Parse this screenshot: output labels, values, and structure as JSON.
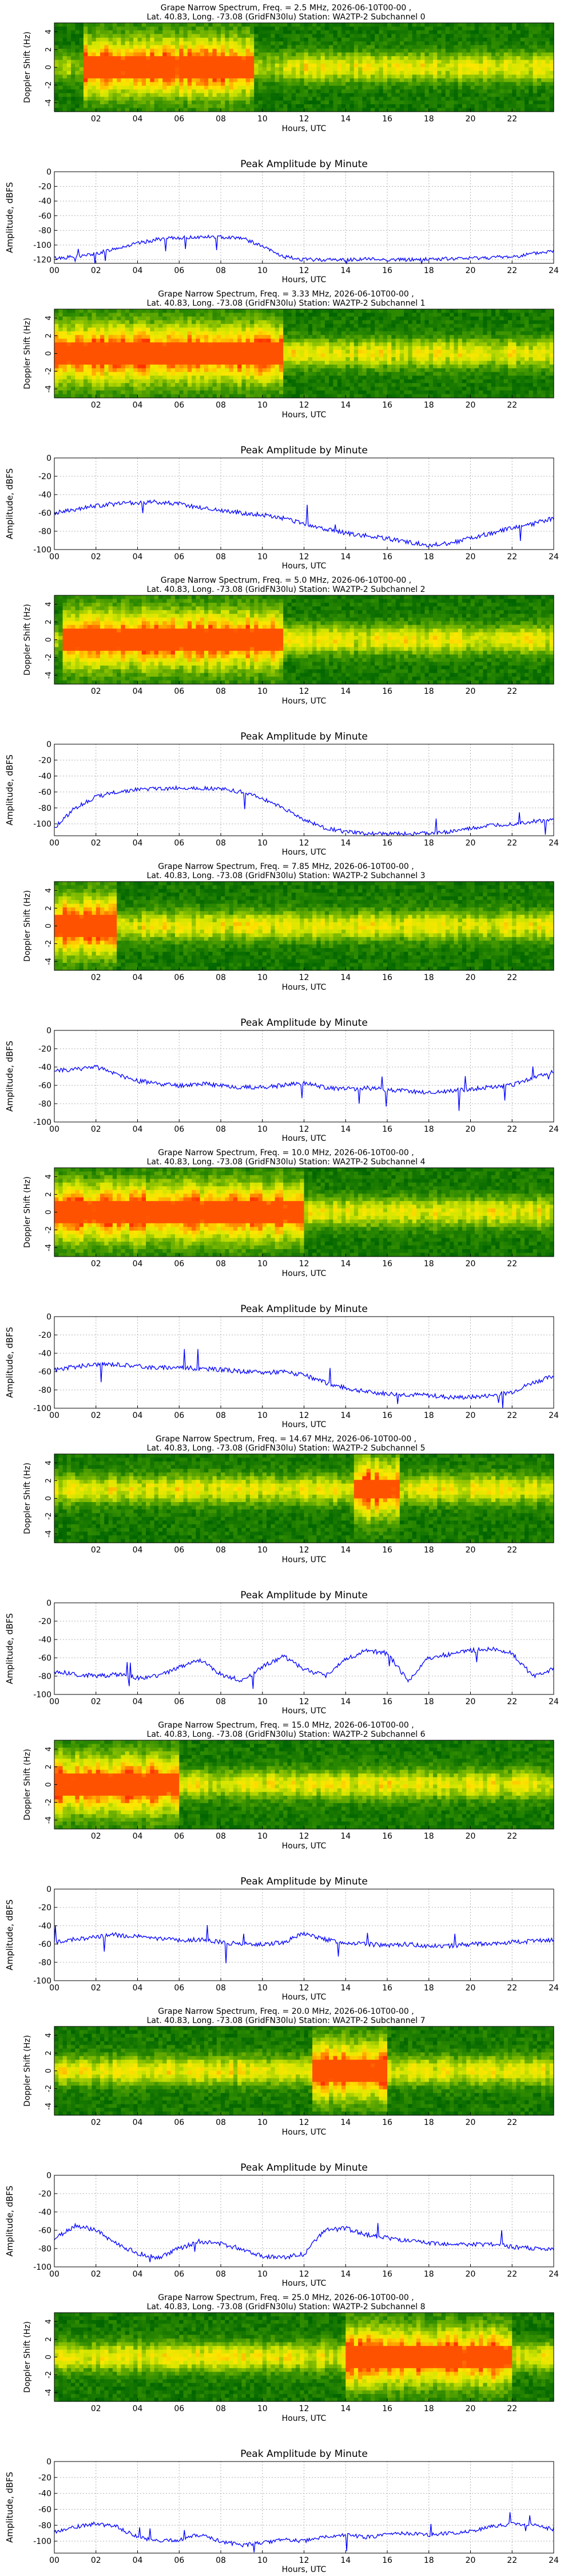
{
  "chart_data": [
    {
      "type": "heatmap",
      "title_line1": "Grape Narrow Spectrum, Freq. = 2.5 MHz, 2026-06-10T00-00 ,",
      "title_line2": "Lat. 40.83, Long. -73.08 (GridFN30lu) Station: WA2TP-2 Subchannel 0",
      "xlabel": "Hours, UTC",
      "ylabel": "Doppler Shift (Hz)",
      "xticks": [
        "02",
        "04",
        "06",
        "08",
        "10",
        "12",
        "14",
        "16",
        "18",
        "20",
        "22"
      ],
      "yticks": [
        "4",
        "2",
        "0",
        "-2",
        "-4"
      ],
      "xlim": [
        0,
        24
      ],
      "ylim": [
        -5,
        5
      ],
      "colormap": [
        "#006400",
        "#2e8b00",
        "#7ab800",
        "#d4e600",
        "#ffe600",
        "#ff9900",
        "#ff3300"
      ],
      "strong_band": [
        1.5,
        9.5
      ],
      "weak_band": [
        11,
        24
      ],
      "band_center": 0
    },
    {
      "type": "line",
      "title": "Peak Amplitude by Minute",
      "xlabel": "Hours, UTC",
      "ylabel": "Amplitude, dBFS",
      "xticks": [
        "00",
        "02",
        "04",
        "06",
        "08",
        "10",
        "12",
        "14",
        "16",
        "18",
        "20",
        "22",
        "24"
      ],
      "yticks": [
        "0",
        "-20",
        "-40",
        "-60",
        "-80",
        "-100",
        "-120"
      ],
      "xlim": [
        0,
        24
      ],
      "ylim": [
        -125,
        0
      ],
      "grid": true,
      "color": "#0000ff",
      "x": [
        0,
        1,
        2,
        3,
        4,
        5,
        6,
        7,
        8,
        9,
        10,
        11,
        12,
        13,
        14,
        15,
        16,
        17,
        18,
        19,
        20,
        21,
        22,
        23,
        24
      ],
      "values": [
        -118,
        -116,
        -112,
        -104,
        -98,
        -92,
        -90,
        -89,
        -89,
        -90,
        -102,
        -116,
        -120,
        -120,
        -120,
        -119,
        -120,
        -120,
        -119,
        -119,
        -118,
        -117,
        -116,
        -112,
        -108
      ]
    },
    {
      "type": "heatmap",
      "title_line1": "Grape Narrow Spectrum, Freq. = 3.33 MHz, 2026-06-10T00-00 ,",
      "title_line2": "Lat. 40.83, Long. -73.08 (GridFN30lu) Station: WA2TP-2 Subchannel 1",
      "xlabel": "Hours, UTC",
      "ylabel": "Doppler Shift (Hz)",
      "xticks": [
        "02",
        "04",
        "06",
        "08",
        "10",
        "12",
        "14",
        "16",
        "18",
        "20",
        "22"
      ],
      "yticks": [
        "4",
        "2",
        "0",
        "-2",
        "-4"
      ],
      "xlim": [
        0,
        24
      ],
      "ylim": [
        -5,
        5
      ],
      "colormap": [
        "#006400",
        "#2e8b00",
        "#7ab800",
        "#d4e600",
        "#ffe600",
        "#ff9900",
        "#ff3300"
      ],
      "strong_band": [
        0,
        11
      ],
      "weak_band": [
        11,
        24
      ],
      "band_center": 0
    },
    {
      "type": "line",
      "title": "Peak Amplitude by Minute",
      "xlabel": "Hours, UTC",
      "ylabel": "Amplitude, dBFS",
      "xticks": [
        "00",
        "02",
        "04",
        "06",
        "08",
        "10",
        "12",
        "14",
        "16",
        "18",
        "20",
        "22",
        "24"
      ],
      "yticks": [
        "0",
        "-20",
        "-40",
        "-60",
        "-80",
        "-100"
      ],
      "xlim": [
        0,
        24
      ],
      "ylim": [
        -100,
        0
      ],
      "grid": true,
      "color": "#0000ff",
      "x": [
        0,
        1,
        2,
        3,
        4,
        5,
        6,
        7,
        8,
        9,
        10,
        11,
        12,
        13,
        14,
        15,
        16,
        17,
        18,
        19,
        20,
        21,
        22,
        23,
        24
      ],
      "values": [
        -60,
        -57,
        -52,
        -50,
        -49,
        -48,
        -50,
        -54,
        -57,
        -60,
        -62,
        -66,
        -72,
        -78,
        -82,
        -85,
        -88,
        -92,
        -95,
        -93,
        -88,
        -82,
        -77,
        -72,
        -66
      ]
    },
    {
      "type": "heatmap",
      "title_line1": "Grape Narrow Spectrum, Freq. = 5.0 MHz, 2026-06-10T00-00 ,",
      "title_line2": "Lat. 40.83, Long. -73.08 (GridFN30lu) Station: WA2TP-2 Subchannel 2",
      "xlabel": "Hours, UTC",
      "ylabel": "Doppler Shift (Hz)",
      "xticks": [
        "02",
        "04",
        "06",
        "08",
        "10",
        "12",
        "14",
        "16",
        "18",
        "20",
        "22"
      ],
      "yticks": [
        "4",
        "2",
        "0",
        "-2",
        "-4"
      ],
      "xlim": [
        0,
        24
      ],
      "ylim": [
        -5,
        5
      ],
      "colormap": [
        "#006400",
        "#2e8b00",
        "#7ab800",
        "#d4e600",
        "#ffe600",
        "#ff9900",
        "#ff3300"
      ],
      "strong_band": [
        0.5,
        11
      ],
      "weak_band": [
        11,
        24
      ],
      "band_center": 0
    },
    {
      "type": "line",
      "title": "Peak Amplitude by Minute",
      "xlabel": "Hours, UTC",
      "ylabel": "Amplitude, dBFS",
      "xticks": [
        "00",
        "02",
        "04",
        "06",
        "08",
        "10",
        "12",
        "14",
        "16",
        "18",
        "20",
        "22",
        "24"
      ],
      "yticks": [
        "0",
        "-20",
        "-40",
        "-60",
        "-80",
        "-100"
      ],
      "xlim": [
        0,
        24
      ],
      "ylim": [
        -115,
        0
      ],
      "grid": true,
      "color": "#0000ff",
      "x": [
        0,
        1,
        2,
        3,
        4,
        5,
        6,
        7,
        8,
        9,
        10,
        11,
        12,
        13,
        14,
        15,
        16,
        17,
        18,
        19,
        20,
        21,
        22,
        23,
        24
      ],
      "values": [
        -105,
        -80,
        -66,
        -60,
        -57,
        -56,
        -55,
        -55,
        -56,
        -60,
        -68,
        -80,
        -95,
        -105,
        -110,
        -112,
        -113,
        -112,
        -112,
        -110,
        -106,
        -102,
        -100,
        -97,
        -95
      ]
    },
    {
      "type": "heatmap",
      "title_line1": "Grape Narrow Spectrum, Freq. = 7.85 MHz, 2026-06-10T00-00 ,",
      "title_line2": "Lat. 40.83, Long. -73.08 (GridFN30lu) Station: WA2TP-2 Subchannel 3",
      "xlabel": "Hours, UTC",
      "ylabel": "Doppler Shift (Hz)",
      "xticks": [
        "02",
        "04",
        "06",
        "08",
        "10",
        "12",
        "14",
        "16",
        "18",
        "20",
        "22"
      ],
      "yticks": [
        "4",
        "2",
        "0",
        "-2",
        "-4"
      ],
      "xlim": [
        0,
        24
      ],
      "ylim": [
        -5,
        5
      ],
      "colormap": [
        "#006400",
        "#2e8b00",
        "#7ab800",
        "#d4e600",
        "#ffe600",
        "#ff9900",
        "#ff3300"
      ],
      "strong_band": [
        0,
        3
      ],
      "weak_band": [
        3,
        24
      ],
      "band_center": 0
    },
    {
      "type": "line",
      "title": "Peak Amplitude by Minute",
      "xlabel": "Hours, UTC",
      "ylabel": "Amplitude, dBFS",
      "xticks": [
        "00",
        "02",
        "04",
        "06",
        "08",
        "10",
        "12",
        "14",
        "16",
        "18",
        "20",
        "22",
        "24"
      ],
      "yticks": [
        "0",
        "-20",
        "-40",
        "-60",
        "-80",
        "-100"
      ],
      "xlim": [
        0,
        24
      ],
      "ylim": [
        -100,
        0
      ],
      "grid": true,
      "color": "#0000ff",
      "x": [
        0,
        1,
        2,
        3,
        4,
        5,
        6,
        7,
        8,
        9,
        10,
        11,
        12,
        13,
        14,
        15,
        16,
        17,
        18,
        19,
        20,
        21,
        22,
        23,
        24
      ],
      "values": [
        -45,
        -42,
        -40,
        -48,
        -55,
        -58,
        -60,
        -58,
        -60,
        -62,
        -62,
        -60,
        -58,
        -62,
        -64,
        -63,
        -65,
        -66,
        -68,
        -66,
        -64,
        -62,
        -60,
        -52,
        -45
      ]
    },
    {
      "type": "heatmap",
      "title_line1": "Grape Narrow Spectrum, Freq. = 10.0 MHz, 2026-06-10T00-00 ,",
      "title_line2": "Lat. 40.83, Long. -73.08 (GridFN30lu) Station: WA2TP-2 Subchannel 4",
      "xlabel": "Hours, UTC",
      "ylabel": "Doppler Shift (Hz)",
      "xticks": [
        "02",
        "04",
        "06",
        "08",
        "10",
        "12",
        "14",
        "16",
        "18",
        "20",
        "22"
      ],
      "yticks": [
        "4",
        "2",
        "0",
        "-2",
        "-4"
      ],
      "xlim": [
        0,
        24
      ],
      "ylim": [
        -5,
        5
      ],
      "colormap": [
        "#006400",
        "#2e8b00",
        "#7ab800",
        "#d4e600",
        "#ffe600",
        "#ff9900",
        "#ff3300"
      ],
      "strong_band": [
        0,
        12
      ],
      "weak_band": [
        12,
        24
      ],
      "band_center": 0
    },
    {
      "type": "line",
      "title": "Peak Amplitude by Minute",
      "xlabel": "Hours, UTC",
      "ylabel": "Amplitude, dBFS",
      "xticks": [
        "00",
        "02",
        "04",
        "06",
        "08",
        "10",
        "12",
        "14",
        "16",
        "18",
        "20",
        "22",
        "24"
      ],
      "yticks": [
        "0",
        "-20",
        "-40",
        "-60",
        "-80",
        "-100"
      ],
      "xlim": [
        0,
        24
      ],
      "ylim": [
        -100,
        0
      ],
      "grid": true,
      "color": "#0000ff",
      "x": [
        0,
        1,
        2,
        3,
        4,
        5,
        6,
        7,
        8,
        9,
        10,
        11,
        12,
        13,
        14,
        15,
        16,
        17,
        18,
        19,
        20,
        21,
        22,
        23,
        24
      ],
      "values": [
        -58,
        -55,
        -52,
        -52,
        -54,
        -56,
        -55,
        -57,
        -58,
        -60,
        -61,
        -60,
        -64,
        -72,
        -78,
        -82,
        -84,
        -85,
        -86,
        -88,
        -88,
        -86,
        -82,
        -72,
        -65
      ]
    },
    {
      "type": "heatmap",
      "title_line1": "Grape Narrow Spectrum, Freq. = 14.67 MHz, 2026-06-10T00-00 ,",
      "title_line2": "Lat. 40.83, Long. -73.08 (GridFN30lu) Station: WA2TP-2 Subchannel 5",
      "xlabel": "Hours, UTC",
      "ylabel": "Doppler Shift (Hz)",
      "xticks": [
        "02",
        "04",
        "06",
        "08",
        "10",
        "12",
        "14",
        "16",
        "18",
        "20",
        "22"
      ],
      "yticks": [
        "4",
        "2",
        "0",
        "-2",
        "-4"
      ],
      "xlim": [
        0,
        24
      ],
      "ylim": [
        -5,
        5
      ],
      "colormap": [
        "#006400",
        "#2e8b00",
        "#7ab800",
        "#d4e600",
        "#ffe600",
        "#ff9900",
        "#ff3300"
      ],
      "strong_band": [
        14.5,
        16.5
      ],
      "weak_band": [
        0,
        24
      ],
      "band_center": 1
    },
    {
      "type": "line",
      "title": "Peak Amplitude by Minute",
      "xlabel": "Hours, UTC",
      "ylabel": "Amplitude, dBFS",
      "xticks": [
        "00",
        "02",
        "04",
        "06",
        "08",
        "10",
        "12",
        "14",
        "16",
        "18",
        "20",
        "22",
        "24"
      ],
      "yticks": [
        "0",
        "-20",
        "-40",
        "-60",
        "-80",
        "-100"
      ],
      "xlim": [
        0,
        24
      ],
      "ylim": [
        -100,
        0
      ],
      "grid": true,
      "color": "#0000ff",
      "x": [
        0,
        1,
        2,
        3,
        4,
        5,
        6,
        7,
        8,
        9,
        10,
        11,
        12,
        13,
        14,
        15,
        16,
        17,
        18,
        19,
        20,
        21,
        22,
        23,
        24
      ],
      "values": [
        -75,
        -78,
        -80,
        -78,
        -82,
        -80,
        -70,
        -62,
        -78,
        -85,
        -70,
        -58,
        -72,
        -80,
        -62,
        -52,
        -55,
        -85,
        -60,
        -56,
        -52,
        -50,
        -55,
        -80,
        -72
      ]
    },
    {
      "type": "heatmap",
      "title_line1": "Grape Narrow Spectrum, Freq. = 15.0 MHz, 2026-06-10T00-00 ,",
      "title_line2": "Lat. 40.83, Long. -73.08 (GridFN30lu) Station: WA2TP-2 Subchannel 6",
      "xlabel": "Hours, UTC",
      "ylabel": "Doppler Shift (Hz)",
      "xticks": [
        "02",
        "04",
        "06",
        "08",
        "10",
        "12",
        "14",
        "16",
        "18",
        "20",
        "22"
      ],
      "yticks": [
        "4",
        "2",
        "0",
        "-2",
        "-4"
      ],
      "xlim": [
        0,
        24
      ],
      "ylim": [
        -5,
        5
      ],
      "colormap": [
        "#006400",
        "#2e8b00",
        "#7ab800",
        "#d4e600",
        "#ffe600",
        "#ff9900",
        "#ff3300"
      ],
      "strong_band": [
        0,
        6
      ],
      "weak_band": [
        6,
        24
      ],
      "band_center": 0
    },
    {
      "type": "line",
      "title": "Peak Amplitude by Minute",
      "xlabel": "Hours, UTC",
      "ylabel": "Amplitude, dBFS",
      "xticks": [
        "00",
        "02",
        "04",
        "06",
        "08",
        "10",
        "12",
        "14",
        "16",
        "18",
        "20",
        "22",
        "24"
      ],
      "yticks": [
        "0",
        "-20",
        "-40",
        "-60",
        "-80",
        "-100"
      ],
      "xlim": [
        0,
        24
      ],
      "ylim": [
        -100,
        0
      ],
      "grid": true,
      "color": "#0000ff",
      "x": [
        0,
        1,
        2,
        3,
        4,
        5,
        6,
        7,
        8,
        9,
        10,
        11,
        12,
        13,
        14,
        15,
        16,
        17,
        18,
        19,
        20,
        21,
        22,
        23,
        24
      ],
      "values": [
        -58,
        -55,
        -52,
        -50,
        -52,
        -54,
        -56,
        -55,
        -58,
        -60,
        -60,
        -58,
        -48,
        -55,
        -58,
        -60,
        -62,
        -60,
        -62,
        -62,
        -60,
        -60,
        -58,
        -57,
        -56
      ]
    },
    {
      "type": "heatmap",
      "title_line1": "Grape Narrow Spectrum, Freq. = 20.0 MHz, 2026-06-10T00-00 ,",
      "title_line2": "Lat. 40.83, Long. -73.08 (GridFN30lu) Station: WA2TP-2 Subchannel 7",
      "xlabel": "Hours, UTC",
      "ylabel": "Doppler Shift (Hz)",
      "xticks": [
        "02",
        "04",
        "06",
        "08",
        "10",
        "12",
        "14",
        "16",
        "18",
        "20",
        "22"
      ],
      "yticks": [
        "4",
        "2",
        "0",
        "-2",
        "-4"
      ],
      "xlim": [
        0,
        24
      ],
      "ylim": [
        -5,
        5
      ],
      "colormap": [
        "#006400",
        "#2e8b00",
        "#7ab800",
        "#d4e600",
        "#ffe600",
        "#ff9900",
        "#ff3300"
      ],
      "strong_band": [
        12.5,
        16
      ],
      "weak_band": [
        0,
        24
      ],
      "band_center": 0
    },
    {
      "type": "line",
      "title": "Peak Amplitude by Minute",
      "xlabel": "Hours, UTC",
      "ylabel": "Amplitude, dBFS",
      "xticks": [
        "00",
        "02",
        "04",
        "06",
        "08",
        "10",
        "12",
        "14",
        "16",
        "18",
        "20",
        "22",
        "24"
      ],
      "yticks": [
        "0",
        "-20",
        "-40",
        "-60",
        "-80",
        "-100"
      ],
      "xlim": [
        0,
        24
      ],
      "ylim": [
        -100,
        0
      ],
      "grid": true,
      "color": "#0000ff",
      "x": [
        0,
        1,
        2,
        3,
        4,
        5,
        6,
        7,
        8,
        9,
        10,
        11,
        12,
        13,
        14,
        15,
        16,
        17,
        18,
        19,
        20,
        21,
        22,
        23,
        24
      ],
      "values": [
        -70,
        -55,
        -60,
        -75,
        -85,
        -90,
        -80,
        -72,
        -75,
        -80,
        -88,
        -90,
        -86,
        -60,
        -58,
        -65,
        -68,
        -72,
        -74,
        -75,
        -76,
        -75,
        -78,
        -80,
        -82
      ]
    },
    {
      "type": "heatmap",
      "title_line1": "Grape Narrow Spectrum, Freq. = 25.0 MHz, 2026-06-10T00-00 ,",
      "title_line2": "Lat. 40.83, Long. -73.08 (GridFN30lu) Station: WA2TP-2 Subchannel 8",
      "xlabel": "Hours, UTC",
      "ylabel": "Doppler Shift (Hz)",
      "xticks": [
        "02",
        "04",
        "06",
        "08",
        "10",
        "12",
        "14",
        "16",
        "18",
        "20",
        "22"
      ],
      "yticks": [
        "4",
        "2",
        "0",
        "-2",
        "-4"
      ],
      "xlim": [
        0,
        24
      ],
      "ylim": [
        -5,
        5
      ],
      "colormap": [
        "#006400",
        "#2e8b00",
        "#7ab800",
        "#d4e600",
        "#ffe600",
        "#ff9900",
        "#ff3300"
      ],
      "strong_band": [
        14,
        22
      ],
      "weak_band": [
        0,
        24
      ],
      "band_center": 0
    },
    {
      "type": "line",
      "title": "Peak Amplitude by Minute",
      "xlabel": "Hours, UTC",
      "ylabel": "Amplitude, dBFS",
      "xticks": [
        "00",
        "02",
        "04",
        "06",
        "08",
        "10",
        "12",
        "14",
        "16",
        "18",
        "20",
        "22",
        "24"
      ],
      "yticks": [
        "0",
        "-20",
        "-40",
        "-60",
        "-80",
        "-100"
      ],
      "xlim": [
        0,
        24
      ],
      "ylim": [
        -115,
        0
      ],
      "grid": true,
      "color": "#0000ff",
      "x": [
        0,
        1,
        2,
        3,
        4,
        5,
        6,
        7,
        8,
        9,
        10,
        11,
        12,
        13,
        14,
        15,
        16,
        17,
        18,
        19,
        20,
        21,
        22,
        23,
        24
      ],
      "values": [
        -88,
        -82,
        -78,
        -82,
        -95,
        -100,
        -98,
        -92,
        -100,
        -105,
        -102,
        -98,
        -100,
        -95,
        -92,
        -95,
        -92,
        -90,
        -92,
        -90,
        -88,
        -82,
        -78,
        -80,
        -85
      ]
    }
  ]
}
